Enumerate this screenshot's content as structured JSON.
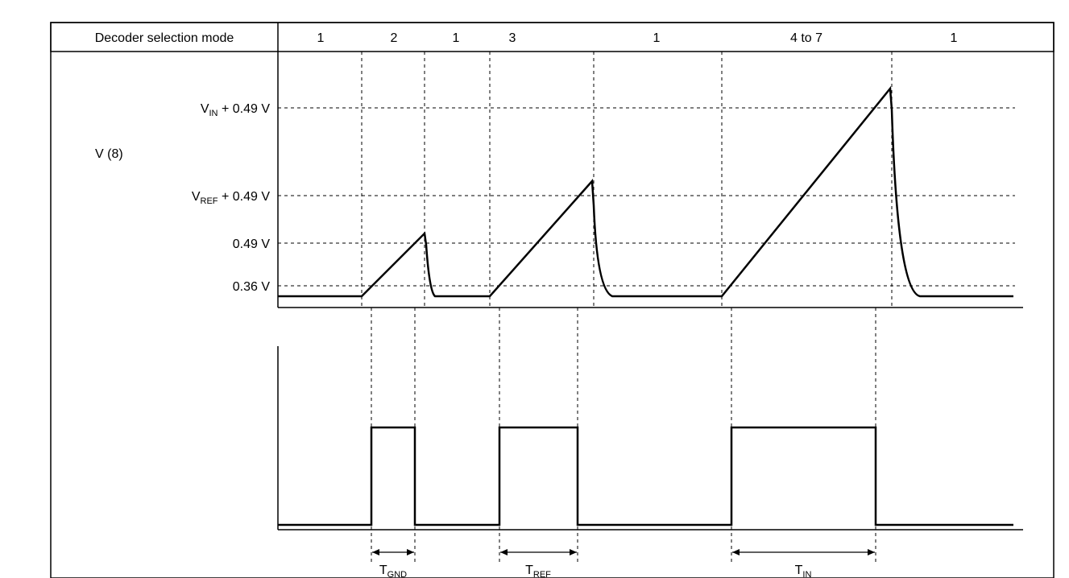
{
  "header": {
    "label": "Decoder selection mode",
    "modes": [
      "1",
      "2",
      "1",
      "3",
      "1",
      "4 to 7",
      "1"
    ]
  },
  "voltage_levels": [
    {
      "main": "V",
      "sub": "IN",
      "rest": " + 0.49 V"
    },
    {
      "main": "V",
      "sub": "REF",
      "rest": " + 0.49 V"
    },
    {
      "main": "0.49 V",
      "sub": "",
      "rest": ""
    },
    {
      "main": "0.36 V",
      "sub": "",
      "rest": ""
    }
  ],
  "signal_label": "V (8)",
  "intervals": [
    {
      "main": "T",
      "sub": "GND"
    },
    {
      "main": "T",
      "sub": "REF"
    },
    {
      "main": "T",
      "sub": "IN"
    }
  ]
}
